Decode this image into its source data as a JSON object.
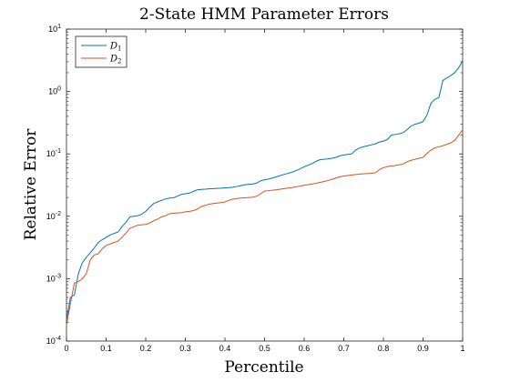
{
  "chart_data": {
    "type": "line",
    "title": "2-State HMM Parameter Errors",
    "xlabel": "Percentile",
    "ylabel": "Relative Error",
    "xlim": [
      0,
      1
    ],
    "ylim": [
      0.0001,
      10
    ],
    "yscale": "log",
    "grid": false,
    "legend_position": "top-left",
    "x_ticks": [
      "0",
      "0.1",
      "0.2",
      "0.3",
      "0.4",
      "0.5",
      "0.6",
      "0.7",
      "0.8",
      "0.9",
      "1"
    ],
    "y_ticks": [
      {
        "base": "10",
        "exp": "-4"
      },
      {
        "base": "10",
        "exp": "-3"
      },
      {
        "base": "10",
        "exp": "-2"
      },
      {
        "base": "10",
        "exp": "-1"
      },
      {
        "base": "10",
        "exp": "0"
      },
      {
        "base": "10",
        "exp": "1"
      }
    ],
    "x": [
      0,
      0.01,
      0.02,
      0.03,
      0.04,
      0.05,
      0.06,
      0.07,
      0.08,
      0.09,
      0.1,
      0.11,
      0.12,
      0.13,
      0.14,
      0.15,
      0.16,
      0.17,
      0.18,
      0.19,
      0.2,
      0.21,
      0.22,
      0.23,
      0.24,
      0.25,
      0.26,
      0.27,
      0.28,
      0.29,
      0.3,
      0.31,
      0.32,
      0.33,
      0.34,
      0.35,
      0.36,
      0.37,
      0.38,
      0.39,
      0.4,
      0.41,
      0.42,
      0.43,
      0.44,
      0.45,
      0.46,
      0.47,
      0.48,
      0.49,
      0.5,
      0.51,
      0.52,
      0.53,
      0.54,
      0.55,
      0.56,
      0.57,
      0.58,
      0.59,
      0.6,
      0.61,
      0.62,
      0.63,
      0.64,
      0.65,
      0.66,
      0.67,
      0.68,
      0.69,
      0.7,
      0.71,
      0.72,
      0.73,
      0.74,
      0.75,
      0.76,
      0.77,
      0.78,
      0.79,
      0.8,
      0.81,
      0.82,
      0.83,
      0.84,
      0.85,
      0.86,
      0.87,
      0.88,
      0.89,
      0.9,
      0.91,
      0.92,
      0.93,
      0.94,
      0.95,
      0.96,
      0.97,
      0.98,
      0.99,
      1.0
    ],
    "series": [
      {
        "name": "D",
        "subscript": "1",
        "color": "#0072BD",
        "values": [
          0.00022,
          0.0005,
          0.00055,
          0.0012,
          0.0018,
          0.0022,
          0.0026,
          0.0031,
          0.0038,
          0.0042,
          0.0046,
          0.005,
          0.0053,
          0.0056,
          0.0068,
          0.008,
          0.0098,
          0.01,
          0.0102,
          0.0108,
          0.012,
          0.014,
          0.016,
          0.017,
          0.018,
          0.019,
          0.0196,
          0.0198,
          0.021,
          0.0225,
          0.023,
          0.0235,
          0.025,
          0.0265,
          0.027,
          0.0272,
          0.0275,
          0.0278,
          0.028,
          0.0282,
          0.0285,
          0.0288,
          0.0292,
          0.03,
          0.031,
          0.032,
          0.0325,
          0.033,
          0.034,
          0.037,
          0.0385,
          0.0395,
          0.041,
          0.043,
          0.045,
          0.047,
          0.049,
          0.051,
          0.054,
          0.058,
          0.062,
          0.066,
          0.07,
          0.076,
          0.081,
          0.082,
          0.083,
          0.085,
          0.088,
          0.093,
          0.096,
          0.098,
          0.1,
          0.115,
          0.125,
          0.13,
          0.135,
          0.14,
          0.145,
          0.155,
          0.16,
          0.17,
          0.2,
          0.205,
          0.21,
          0.22,
          0.245,
          0.28,
          0.3,
          0.31,
          0.33,
          0.42,
          0.65,
          0.75,
          0.8,
          1.5,
          1.65,
          1.8,
          2.0,
          2.4,
          3.1
        ]
      },
      {
        "name": "D",
        "subscript": "2",
        "color": "#D95319",
        "values": [
          0.00018,
          0.0004,
          0.00085,
          0.0009,
          0.001,
          0.0012,
          0.002,
          0.0024,
          0.0025,
          0.003,
          0.0034,
          0.0036,
          0.0038,
          0.004,
          0.0046,
          0.0054,
          0.0064,
          0.0068,
          0.0072,
          0.0073,
          0.0074,
          0.0078,
          0.0085,
          0.009,
          0.0098,
          0.0102,
          0.011,
          0.0112,
          0.0113,
          0.0114,
          0.0118,
          0.012,
          0.0123,
          0.013,
          0.0143,
          0.015,
          0.0156,
          0.016,
          0.0163,
          0.0166,
          0.017,
          0.018,
          0.0188,
          0.0193,
          0.0196,
          0.0198,
          0.02,
          0.0202,
          0.021,
          0.023,
          0.0253,
          0.0258,
          0.0262,
          0.0266,
          0.0272,
          0.0278,
          0.0284,
          0.029,
          0.0297,
          0.0305,
          0.0315,
          0.0322,
          0.033,
          0.0338,
          0.035,
          0.036,
          0.0375,
          0.039,
          0.041,
          0.043,
          0.044,
          0.045,
          0.046,
          0.0468,
          0.0475,
          0.048,
          0.0485,
          0.049,
          0.05,
          0.056,
          0.06,
          0.0625,
          0.064,
          0.065,
          0.067,
          0.069,
          0.075,
          0.079,
          0.082,
          0.085,
          0.088,
          0.102,
          0.115,
          0.125,
          0.13,
          0.135,
          0.142,
          0.15,
          0.165,
          0.2,
          0.245
        ]
      }
    ]
  }
}
